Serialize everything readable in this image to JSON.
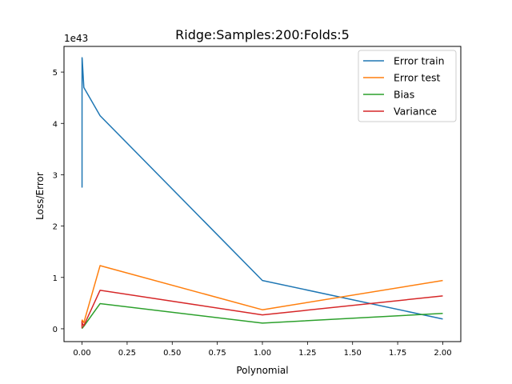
{
  "chart_data": {
    "type": "line",
    "title": "Ridge:Samples:200:Folds:5",
    "xlabel": "Polynomial",
    "ylabel": "Loss/Error",
    "y_offset_label": "1e43",
    "xlim": [
      -0.1,
      2.1
    ],
    "ylim": [
      -0.25,
      5.5
    ],
    "x_ticks": [
      0.0,
      0.25,
      0.5,
      0.75,
      1.0,
      1.25,
      1.5,
      1.75,
      2.0
    ],
    "x_tick_labels": [
      "0.00",
      "0.25",
      "0.50",
      "0.75",
      "1.00",
      "1.25",
      "1.50",
      "1.75",
      "2.00"
    ],
    "y_ticks": [
      0,
      1,
      2,
      3,
      4,
      5
    ],
    "y_tick_labels": [
      "0",
      "1",
      "2",
      "3",
      "4",
      "5"
    ],
    "grid": false,
    "legend_position": "top-right",
    "x": [
      0.0,
      0.0001,
      0.001,
      0.01,
      0.1,
      1.0,
      2.0
    ],
    "series": [
      {
        "name": "Error train",
        "color": "#1f77b4",
        "values": [
          2.75,
          5.28,
          5.25,
          4.7,
          4.15,
          0.94,
          0.19
        ]
      },
      {
        "name": "Error test",
        "color": "#ff7f0e",
        "values": [
          0.17,
          0.05,
          0.17,
          0.12,
          1.23,
          0.37,
          0.94
        ]
      },
      {
        "name": "Bias",
        "color": "#2ca02c",
        "values": [
          0.01,
          0.02,
          0.01,
          0.05,
          0.49,
          0.11,
          0.3
        ]
      },
      {
        "name": "Variance",
        "color": "#d62728",
        "values": [
          0.15,
          0.02,
          0.11,
          0.06,
          0.75,
          0.27,
          0.64
        ]
      }
    ]
  }
}
